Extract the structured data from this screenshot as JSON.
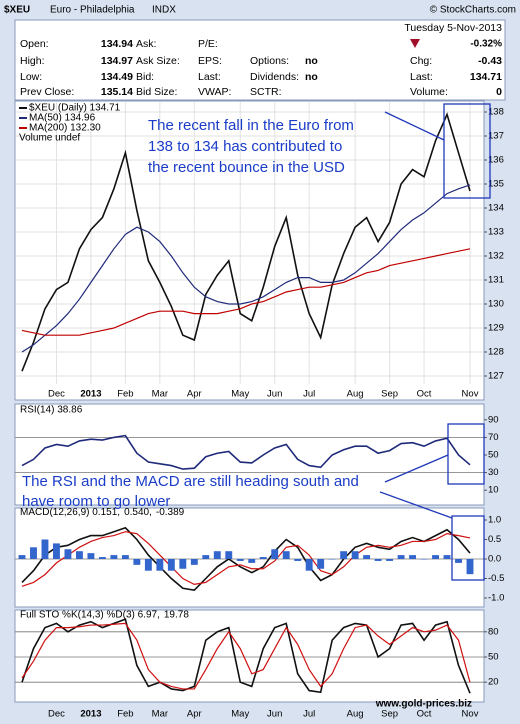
{
  "header": {
    "symbol": "$XEU",
    "name": "Euro - Philadelphia",
    "exchange": "INDX",
    "copyright": "© StockCharts.com",
    "date": "Tuesday 5-Nov-2013",
    "change_pct": "-0.32%",
    "quote": [
      [
        {
          "label": "Open:",
          "value": "134.94"
        },
        {
          "label": "Ask:"
        },
        {
          "label": "P/E:"
        }
      ],
      [
        {
          "label": "High:",
          "value": "134.97"
        },
        {
          "label": "Ask Size:"
        },
        {
          "label": "EPS:"
        },
        {
          "label": "Options:",
          "value": "no"
        }
      ],
      [
        {
          "label": "Low:",
          "value": "134.49"
        },
        {
          "label": "Bid:"
        },
        {
          "label": "Last:"
        },
        {
          "label": "Dividends:",
          "value": "no"
        }
      ],
      [
        {
          "label": "Prev Close:",
          "value": "135.14"
        },
        {
          "label": "Bid Size:"
        },
        {
          "label": "VWAP:"
        },
        {
          "label": "SCTR:"
        }
      ]
    ],
    "stats": [
      {
        "label": "Chg:",
        "value": "-0.43"
      },
      {
        "label": "Last:",
        "value": "134.71"
      },
      {
        "label": "Volume:",
        "value": "0"
      }
    ]
  },
  "chart_data": [
    {
      "type": "line",
      "categories": [
        null,
        null,
        null,
        "Dec",
        null,
        null,
        "2013",
        null,
        null,
        "Feb",
        null,
        null,
        "Mar",
        null,
        null,
        "Apr",
        null,
        null,
        null,
        "May",
        null,
        null,
        "Jun",
        null,
        null,
        "Jul",
        null,
        null,
        null,
        "Aug",
        null,
        null,
        "Sep",
        null,
        null,
        "Oct",
        null,
        null,
        null,
        "Nov"
      ],
      "ylim": [
        126.5,
        138.5
      ],
      "yticks": [
        127,
        128,
        129,
        130,
        131,
        132,
        133,
        134,
        135,
        136,
        137,
        138
      ],
      "grid": true,
      "volume_label": "Volume undef",
      "annotations": [
        "The recent fall in the Euro from",
        "138 to 134 has contributed to",
        "the recent bounce in the USD"
      ],
      "series": [
        {
          "name": "$XEU (Daily) 134.71",
          "color": "#111111",
          "values": [
            127.2,
            128.4,
            129.8,
            130.6,
            130.9,
            132.3,
            133.1,
            133.6,
            134.8,
            136.3,
            133.9,
            131.8,
            130.9,
            129.9,
            128.7,
            128.5,
            130.4,
            131.2,
            131.8,
            129.6,
            129.3,
            130.7,
            132.4,
            133.6,
            131.2,
            129.6,
            128.6,
            130.8,
            132.1,
            133.2,
            133.6,
            132.6,
            133.4,
            135.0,
            135.6,
            135.3,
            136.8,
            137.9,
            136.3,
            134.71
          ]
        },
        {
          "name": "MA(50) 134.96",
          "color": "#1f2a7a",
          "values": [
            128.0,
            128.3,
            128.7,
            129.1,
            129.6,
            130.2,
            130.9,
            131.6,
            132.3,
            132.9,
            133.2,
            133.0,
            132.6,
            132.0,
            131.3,
            130.7,
            130.3,
            130.1,
            130.0,
            130.0,
            130.1,
            130.3,
            130.6,
            130.9,
            131.1,
            131.1,
            130.9,
            130.9,
            131.0,
            131.3,
            131.7,
            132.1,
            132.6,
            133.1,
            133.5,
            133.8,
            134.2,
            134.6,
            134.8,
            134.96
          ]
        },
        {
          "name": "MA(200) 132.30",
          "color": "#c00000",
          "values": [
            128.9,
            128.8,
            128.7,
            128.7,
            128.7,
            128.7,
            128.8,
            128.9,
            129.0,
            129.2,
            129.4,
            129.6,
            129.7,
            129.7,
            129.7,
            129.6,
            129.6,
            129.6,
            129.7,
            129.8,
            130.0,
            130.1,
            130.3,
            130.5,
            130.6,
            130.7,
            130.7,
            130.8,
            130.9,
            131.1,
            131.3,
            131.4,
            131.6,
            131.7,
            131.8,
            131.9,
            132.0,
            132.1,
            132.2,
            132.3
          ]
        }
      ]
    },
    {
      "type": "line",
      "ylim": [
        0,
        100
      ],
      "yticks": [
        10,
        30,
        50,
        70,
        90
      ],
      "reference_lines": [
        30,
        70
      ],
      "annotations": [
        "The RSI and the MACD are still heading south and",
        "have room to go lower"
      ],
      "series": [
        {
          "name": "RSI(14) 38.86",
          "color": "#1f2a7a",
          "values": [
            38,
            45,
            58,
            62,
            60,
            66,
            68,
            67,
            70,
            72,
            52,
            42,
            40,
            38,
            34,
            35,
            48,
            52,
            54,
            42,
            41,
            50,
            58,
            62,
            45,
            38,
            36,
            50,
            56,
            60,
            60,
            52,
            55,
            63,
            64,
            60,
            66,
            69,
            50,
            38.86
          ]
        }
      ]
    },
    {
      "type": "line",
      "ylim": [
        -1.25,
        1.25
      ],
      "yticks": [
        {
          "value": 1,
          "label": "1.0"
        },
        0.5,
        {
          "value": 0,
          "label": "0.0"
        },
        -0.5,
        {
          "value": -1,
          "label": "-1.0"
        }
      ],
      "reference_lines": [
        0
      ],
      "series": [
        {
          "name": "MACD(12,26,9) 0.151,",
          "color": "#111111",
          "values": [
            -0.6,
            -0.3,
            0.1,
            0.3,
            0.35,
            0.5,
            0.6,
            0.6,
            0.7,
            0.8,
            0.5,
            0.1,
            -0.2,
            -0.5,
            -0.75,
            -0.8,
            -0.5,
            -0.2,
            0.0,
            -0.2,
            -0.35,
            -0.2,
            0.2,
            0.5,
            0.3,
            -0.2,
            -0.55,
            -0.4,
            0.0,
            0.3,
            0.4,
            0.3,
            0.25,
            0.45,
            0.55,
            0.45,
            0.6,
            0.75,
            0.5,
            0.151
          ]
        },
        {
          "name": "0.540,",
          "color": "#d01010",
          "values": [
            -0.7,
            -0.6,
            -0.4,
            -0.1,
            0.1,
            0.3,
            0.45,
            0.55,
            0.6,
            0.7,
            0.65,
            0.4,
            0.1,
            -0.2,
            -0.5,
            -0.65,
            -0.6,
            -0.4,
            -0.2,
            -0.15,
            -0.25,
            -0.25,
            -0.05,
            0.3,
            0.35,
            0.1,
            -0.3,
            -0.4,
            -0.2,
            0.1,
            0.3,
            0.35,
            0.3,
            0.35,
            0.45,
            0.45,
            0.5,
            0.65,
            0.6,
            0.54
          ]
        },
        {
          "name": "-0.389",
          "color": "#3366cc",
          "style": "histogram",
          "values": [
            0.1,
            0.3,
            0.5,
            0.4,
            0.25,
            0.2,
            0.15,
            0.05,
            0.1,
            0.1,
            -0.15,
            -0.3,
            -0.3,
            -0.3,
            -0.25,
            -0.15,
            0.1,
            0.2,
            0.2,
            -0.05,
            -0.1,
            0.05,
            0.25,
            0.2,
            -0.05,
            -0.3,
            -0.25,
            0,
            0.2,
            0.2,
            0.1,
            -0.05,
            -0.05,
            0.1,
            0.1,
            0,
            0.1,
            0.1,
            -0.1,
            -0.389
          ]
        }
      ]
    },
    {
      "type": "line",
      "categories": [
        null,
        null,
        null,
        "Dec",
        null,
        null,
        "2013",
        null,
        null,
        "Feb",
        null,
        null,
        "Mar",
        null,
        null,
        "Apr",
        null,
        null,
        null,
        "May",
        null,
        null,
        "Jun",
        null,
        null,
        "Jul",
        null,
        null,
        null,
        "Aug",
        null,
        null,
        "Sep",
        null,
        null,
        "Oct",
        null,
        null,
        null,
        "Nov"
      ],
      "ylim": [
        0,
        100
      ],
      "yticks": [
        20,
        50,
        80
      ],
      "reference_lines": [
        20,
        50,
        80
      ],
      "watermark": "www.gold-prices.biz",
      "series": [
        {
          "name": "Full STO %K(14,3) %D(3) 6.97,",
          "color": "#111111",
          "values": [
            20,
            60,
            85,
            90,
            80,
            88,
            92,
            85,
            90,
            95,
            40,
            15,
            20,
            12,
            10,
            15,
            70,
            80,
            85,
            20,
            15,
            60,
            85,
            90,
            30,
            10,
            8,
            70,
            85,
            90,
            88,
            50,
            60,
            88,
            90,
            70,
            88,
            92,
            40,
            6.97
          ]
        },
        {
          "name": "19.78",
          "color": "#d01010",
          "values": [
            25,
            45,
            70,
            85,
            85,
            86,
            88,
            88,
            89,
            90,
            70,
            35,
            20,
            15,
            12,
            12,
            35,
            60,
            80,
            60,
            30,
            35,
            60,
            85,
            65,
            35,
            15,
            30,
            60,
            85,
            88,
            75,
            65,
            75,
            85,
            80,
            82,
            88,
            70,
            19.78
          ]
        }
      ]
    }
  ]
}
